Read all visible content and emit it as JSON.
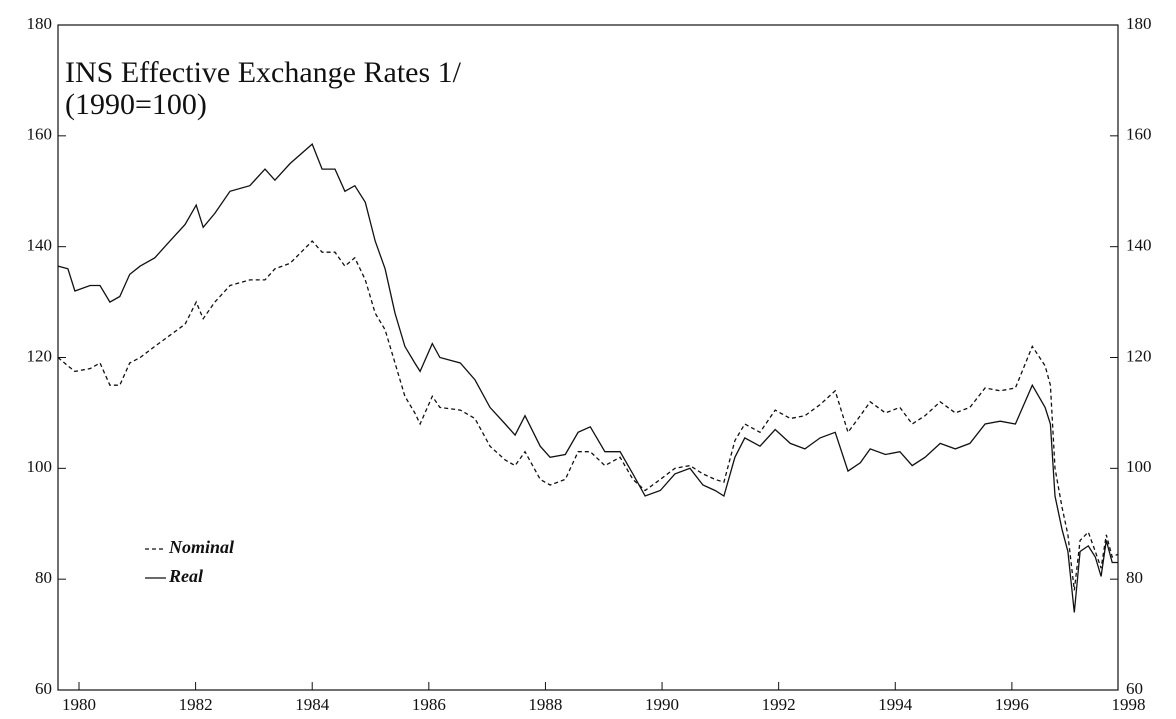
{
  "chart_data": {
    "type": "line",
    "title": "INS Effective Exchange Rates 1/",
    "subtitle": "(1990=100)",
    "x": [
      1979.64,
      1979.81,
      1979.93,
      1980.19,
      1980.36,
      1980.53,
      1980.7,
      1980.87,
      1981.05,
      1981.3,
      1981.56,
      1981.82,
      1982.01,
      1982.13,
      1982.33,
      1982.59,
      1982.93,
      1983.19,
      1983.36,
      1983.62,
      1984.0,
      1984.17,
      1984.39,
      1984.56,
      1984.73,
      1984.91,
      1985.08,
      1985.25,
      1985.42,
      1985.59,
      1985.76,
      1985.85,
      1986.06,
      1986.19,
      1986.54,
      1986.79,
      1987.05,
      1987.31,
      1987.48,
      1987.65,
      1987.91,
      1988.08,
      1988.34,
      1988.56,
      1988.77,
      1989.02,
      1989.28,
      1989.5,
      1989.71,
      1989.97,
      1990.22,
      1990.48,
      1990.7,
      1990.91,
      1991.06,
      1991.25,
      1991.42,
      1991.68,
      1991.94,
      1992.2,
      1992.45,
      1992.71,
      1992.97,
      1993.19,
      1993.4,
      1993.57,
      1993.83,
      1994.08,
      1994.29,
      1994.51,
      1994.77,
      1995.03,
      1995.28,
      1995.54,
      1995.8,
      1996.06,
      1996.35,
      1996.57,
      1996.66,
      1996.74,
      1996.86,
      1996.96,
      1997.07,
      1997.17,
      1997.31,
      1997.43,
      1997.53,
      1997.62,
      1997.72,
      1997.82
    ],
    "series": [
      {
        "name": "Nominal",
        "color": "#111111",
        "dash": true,
        "values": [
          120,
          118.5,
          117.5,
          118,
          119,
          115,
          115,
          119,
          120,
          122,
          124,
          126,
          130,
          127,
          130,
          133,
          134,
          134,
          136,
          137,
          141,
          139,
          139,
          136.5,
          138,
          134,
          128,
          125,
          119,
          113,
          110,
          108,
          113,
          111,
          110.5,
          109,
          104,
          101.5,
          100.5,
          103,
          98,
          97,
          98,
          103,
          103,
          100.5,
          102,
          98,
          96,
          98,
          100,
          100.5,
          99,
          98,
          97.5,
          105,
          108,
          106.5,
          110.5,
          109,
          109.5,
          111.5,
          114,
          106.5,
          109.5,
          112,
          110,
          111,
          108,
          109.5,
          112,
          110,
          111,
          114.5,
          114,
          114.5,
          122,
          118.5,
          115,
          100,
          93,
          88,
          78,
          87,
          88.5,
          85,
          82,
          88,
          84,
          84.5
        ]
      },
      {
        "name": "Real",
        "color": "#111111",
        "dash": false,
        "values": [
          136.5,
          136,
          132,
          133,
          133,
          130,
          131,
          135,
          136.5,
          138,
          141,
          144,
          147.5,
          143.5,
          146,
          150,
          151,
          154,
          152,
          155,
          158.5,
          154,
          154,
          150,
          151,
          148,
          141,
          136,
          128,
          122,
          119,
          117.5,
          122.5,
          120,
          119,
          116,
          111,
          108,
          106,
          109.5,
          104,
          102,
          102.5,
          106.5,
          107.5,
          103,
          103,
          99,
          95,
          96,
          99,
          100,
          97,
          96,
          95,
          102,
          105.5,
          104,
          107,
          104.5,
          103.5,
          105.5,
          106.5,
          99.5,
          101,
          103.5,
          102.5,
          103,
          100.5,
          102,
          104.5,
          103.5,
          104.5,
          108,
          108.5,
          108,
          115,
          111,
          108,
          95,
          89,
          85,
          74,
          85,
          86,
          84,
          80.5,
          87,
          83,
          83
        ]
      }
    ],
    "xlim": [
      1979.64,
      1997.82
    ],
    "xticks": [
      1980,
      1982,
      1984,
      1986,
      1988,
      1990,
      1992,
      1994,
      1996,
      1998
    ],
    "ylim": [
      60,
      180
    ],
    "yticks": [
      60,
      80,
      100,
      120,
      140,
      160,
      180
    ],
    "grid": false
  }
}
